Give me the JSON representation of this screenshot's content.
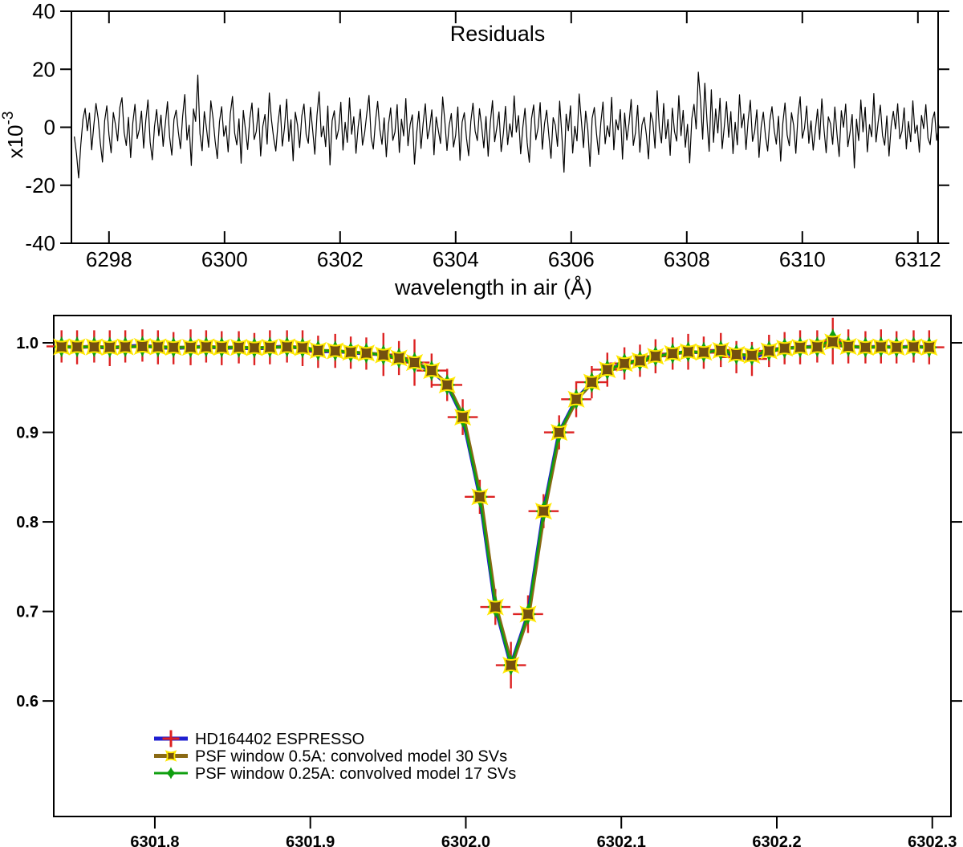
{
  "figure": {
    "background": "#ffffff",
    "frame_color": "#000000"
  },
  "legend": {
    "position": "bottom-left-inside",
    "items": [
      {
        "label": "HD164402 ESPRESSO",
        "marker": "red-plus-error-bar",
        "line_color": "#1f1fd0",
        "marker_color": "#dd2222"
      },
      {
        "label": "PSF window 0.5A: convolved model 30 SVs",
        "marker": "yellow-box-star",
        "line_color": "#8a6914",
        "marker_color": "#74500f"
      },
      {
        "label": "PSF window 0.25A: convolved model 17 SVs",
        "marker": "green-star4",
        "line_color": "#0f9f0f",
        "marker_color": "#0f9f0f"
      }
    ]
  },
  "chart_data": [
    {
      "type": "line",
      "panel": "top",
      "title": "Residuals",
      "xlabel": "wavelength in air (Å)",
      "ylabel": "x10⁻³",
      "ylabel_base": "x10",
      "ylabel_exp": "-3",
      "line_color": "#000000",
      "xlim": [
        6297.35,
        6312.35
      ],
      "ylim": [
        -40,
        40
      ],
      "xticks": [
        6298,
        6300,
        6302,
        6304,
        6306,
        6308,
        6310,
        6312
      ],
      "yticks": [
        40,
        20,
        0,
        -20,
        -40
      ],
      "units": "residual values in 1e-3",
      "x_start": 6297.4,
      "x_step": 0.0375,
      "values": [
        -3.2,
        -9.1,
        -17.5,
        -6.0,
        2.8,
        6.5,
        -1.2,
        4.9,
        -7.8,
        0.6,
        8.2,
        3.1,
        -5.4,
        -12.0,
        2.2,
        7.4,
        -2.6,
        -8.8,
        5.1,
        0.9,
        -4.7,
        6.8,
        10.2,
        -1.8,
        -6.3,
        3.4,
        -10.5,
        1.5,
        7.9,
        -3.9,
        -0.8,
        5.6,
        -7.2,
        2.4,
        9.4,
        -5.1,
        -11.2,
        0.2,
        6.1,
        -2.9,
        4.2,
        -6.6,
        1.1,
        8.8,
        -3.5,
        -9.6,
        2.7,
        5.9,
        -1.5,
        -7.4,
        3.8,
        11.3,
        -4.4,
        0.7,
        -13.2,
        6.3,
        2.0,
        18.0,
        -2.2,
        -8.1,
        5.4,
        -0.4,
        -6.9,
        9.1,
        3.3,
        -4.8,
        -10.8,
        1.9,
        7.1,
        -3.1,
        0.5,
        -8.5,
        4.6,
        10.6,
        -2.0,
        -6.1,
        2.9,
        -12.4,
        5.8,
        -0.9,
        -7.7,
        3.0,
        8.4,
        -4.2,
        -1.4,
        6.6,
        -9.9,
        0.3,
        4.4,
        -5.8,
        11.8,
        2.5,
        -3.7,
        -8.2,
        1.3,
        7.6,
        -6.5,
        -0.2,
        9.7,
        -4.9,
        2.6,
        -11.6,
        5.2,
        0.8,
        -7.0,
        3.9,
        8.0,
        -2.5,
        -5.5,
        6.9,
        -1.0,
        -9.3,
        4.1,
        12.2,
        -3.3,
        0.4,
        -6.7,
        7.3,
        -13.0,
        2.3,
        5.7,
        -4.1,
        -0.6,
        8.6,
        -7.9,
        1.7,
        -5.2,
        10.1,
        -2.4,
        3.6,
        -9.0,
        0.1,
        6.2,
        -6.2,
        -1.9,
        4.8,
        11.0,
        -3.6,
        -7.5,
        2.1,
        8.9,
        -0.7,
        -5.9,
        3.2,
        -10.2,
        1.0,
        6.7,
        -4.5,
        -1.6,
        7.8,
        -8.7,
        2.8,
        -3.0,
        9.9,
        -6.4,
        0.9,
        4.3,
        -12.7,
        -2.1,
        5.5,
        -7.3,
        1.4,
        8.1,
        -4.0,
        -0.3,
        6.0,
        -9.5,
        3.5,
        -1.1,
        -5.6,
        10.4,
        2.2,
        -8.0,
        0.6,
        4.7,
        -6.8,
        -2.7,
        7.0,
        -11.4,
        1.8,
        5.0,
        -3.8,
        -9.8,
        2.0,
        8.3,
        -1.3,
        -4.6,
        6.4,
        0.2,
        -7.1,
        3.7,
        -10.0,
        1.6,
        9.2,
        -5.0,
        -0.1,
        5.3,
        -8.4,
        -2.3,
        7.2,
        -6.0,
        1.2,
        -3.4,
        10.8,
        -1.7,
        4.0,
        -9.2,
        0.0,
        6.5,
        -5.3,
        -12.1,
        2.9,
        7.7,
        -4.3,
        -0.5,
        8.5,
        -7.6,
        1.1,
        5.9,
        -2.8,
        -10.7,
        3.3,
        0.7,
        -6.6,
        9.0,
        -2.6,
        -15.5,
        4.5,
        -1.2,
        7.4,
        -8.9,
        0.3,
        -4.7,
        11.5,
        2.4,
        -7.0,
        5.6,
        -0.8,
        -13.5,
        3.1,
        6.8,
        -2.2,
        -9.4,
        1.5,
        8.7,
        -5.7,
        0.5,
        -3.2,
        10.3,
        -7.8,
        2.6,
        -0.9,
        6.1,
        -11.0,
        4.9,
        -4.4,
        1.3,
        9.6,
        -6.3,
        -1.8,
        7.5,
        -8.6,
        0.8,
        3.4,
        -2.5,
        -10.9,
        5.1,
        1.9,
        -7.2,
        12.6,
        -0.4,
        -5.4,
        8.2,
        -3.9,
        2.7,
        -9.7,
        6.6,
        -1.5,
        -4.8,
        10.9,
        -2.9,
        5.8,
        -6.9,
        1.0,
        -12.3,
        3.0,
        7.9,
        -0.6,
        19.0,
        9.5,
        -4.1,
        15.2,
        2.1,
        -8.3,
        12.9,
        -5.2,
        6.3,
        -2.0,
        10.0,
        -7.4,
        0.4,
        8.8,
        -3.5,
        5.4,
        -9.1,
        1.7,
        -6.1,
        11.2,
        -0.2,
        4.6,
        -7.7,
        2.5,
        9.3,
        -4.9,
        -1.4,
        6.0,
        -10.4,
        0.1,
        5.2,
        -3.1,
        -8.2,
        2.3,
        7.1,
        -0.9,
        -5.8,
        3.8,
        -11.7,
        1.4,
        8.4,
        -2.7,
        -6.4,
        5.0,
        0.6,
        -9.0,
        4.2,
        10.5,
        -3.8,
        -0.3,
        7.3,
        -5.5,
        2.2,
        -7.9,
        -1.1,
        6.2,
        -4.2,
        9.8,
        -0.7,
        -8.8,
        3.6,
        1.2,
        -5.9,
        7.0,
        -2.4,
        -10.1,
        5.7,
        0.0,
        8.0,
        -6.7,
        -1.9,
        4.4,
        -14.0,
        2.8,
        -4.6,
        9.4,
        -1.6,
        6.9,
        -8.5,
        0.9,
        -3.3,
        11.6,
        -5.1,
        1.8,
        7.6,
        -2.8,
        -6.2,
        3.9,
        -9.9,
        0.5,
        5.5,
        -0.6,
        8.1,
        -4.0,
        -1.3,
        6.7,
        -7.5,
        2.0,
        -5.0,
        9.1,
        -2.1,
        0.7,
        -8.6,
        4.1,
        -0.5,
        7.8,
        -3.7,
        -6.0,
        2.5,
        5.3,
        -4.5,
        0.8
      ]
    },
    {
      "type": "line",
      "panel": "bottom",
      "xlim": [
        6301.735,
        6302.312
      ],
      "ylim": [
        0.471,
        1.0305
      ],
      "xticks": [
        "6301.8",
        "6301.9",
        "6302.0",
        "6302.1",
        "6302.2",
        "6302.3"
      ],
      "yticks": [
        "1.0",
        "0.9",
        "0.8",
        "0.7",
        "0.6"
      ],
      "x": [
        6301.74,
        6301.75,
        6301.761,
        6301.771,
        6301.781,
        6301.792,
        6301.802,
        6301.812,
        6301.823,
        6301.833,
        6301.843,
        6301.854,
        6301.864,
        6301.874,
        6301.885,
        6301.895,
        6301.905,
        6301.916,
        6301.926,
        6301.936,
        6301.947,
        6301.957,
        6301.967,
        6301.978,
        6301.988,
        6301.998,
        6302.009,
        6302.019,
        6302.029,
        6302.04,
        6302.05,
        6302.06,
        6302.071,
        6302.081,
        6302.091,
        6302.102,
        6302.112,
        6302.122,
        6302.133,
        6302.143,
        6302.153,
        6302.164,
        6302.174,
        6302.184,
        6302.195,
        6302.205,
        6302.215,
        6302.226,
        6302.236,
        6302.246,
        6302.257,
        6302.267,
        6302.277,
        6302.288,
        6302.298
      ],
      "series": [
        {
          "name": "HD164402 ESPRESSO",
          "color": "#1f1fd0",
          "marker": "red-plus-error-bar",
          "marker_color": "#dd2222",
          "xerr": 0.0097,
          "values": [
            0.996,
            0.995,
            0.996,
            0.994,
            0.996,
            0.997,
            0.995,
            0.994,
            0.995,
            0.996,
            0.994,
            0.995,
            0.993,
            0.995,
            0.996,
            0.994,
            0.99,
            0.991,
            0.989,
            0.988,
            0.987,
            0.983,
            0.978,
            0.969,
            0.953,
            0.917,
            0.828,
            0.705,
            0.64,
            0.697,
            0.812,
            0.9,
            0.937,
            0.956,
            0.97,
            0.977,
            0.98,
            0.985,
            0.988,
            0.99,
            0.989,
            0.992,
            0.984,
            0.982,
            0.991,
            0.994,
            0.995,
            0.996,
            1.002,
            0.996,
            0.995,
            0.996,
            0.995,
            0.996,
            0.995
          ],
          "err": [
            0.018,
            0.019,
            0.018,
            0.02,
            0.018,
            0.018,
            0.019,
            0.018,
            0.02,
            0.018,
            0.019,
            0.018,
            0.018,
            0.019,
            0.018,
            0.02,
            0.018,
            0.019,
            0.018,
            0.018,
            0.024,
            0.019,
            0.026,
            0.019,
            0.018,
            0.02,
            0.019,
            0.02,
            0.026,
            0.021,
            0.019,
            0.019,
            0.02,
            0.018,
            0.019,
            0.018,
            0.018,
            0.019,
            0.018,
            0.02,
            0.018,
            0.019,
            0.018,
            0.019,
            0.018,
            0.018,
            0.019,
            0.018,
            0.026,
            0.019,
            0.018,
            0.019,
            0.018,
            0.018,
            0.019
          ]
        },
        {
          "name": "PSF window 0.5A: convolved model 30 SVs",
          "color": "#8a6914",
          "marker": "yellow-box-star",
          "marker_color": "#74500f",
          "marker_stroke": "#ffe800",
          "values": [
            0.9955,
            0.9955,
            0.9955,
            0.995,
            0.9955,
            0.996,
            0.9955,
            0.995,
            0.995,
            0.9955,
            0.995,
            0.995,
            0.9945,
            0.995,
            0.9955,
            0.9945,
            0.9915,
            0.991,
            0.9895,
            0.9885,
            0.9865,
            0.983,
            0.978,
            0.969,
            0.953,
            0.917,
            0.828,
            0.705,
            0.64,
            0.697,
            0.812,
            0.9,
            0.937,
            0.956,
            0.97,
            0.977,
            0.98,
            0.985,
            0.988,
            0.99,
            0.9895,
            0.9915,
            0.987,
            0.986,
            0.991,
            0.994,
            0.995,
            0.9955,
            1.001,
            0.996,
            0.995,
            0.9955,
            0.995,
            0.9955,
            0.995
          ]
        },
        {
          "name": "PSF window 0.25A: convolved model 17 SVs",
          "color": "#0f9f0f",
          "marker": "green-star4",
          "marker_color": "#0f9f0f",
          "values": [
            0.9955,
            0.9955,
            0.9955,
            0.995,
            0.9955,
            0.996,
            0.9955,
            0.995,
            0.995,
            0.9955,
            0.995,
            0.995,
            0.9945,
            0.995,
            0.9955,
            0.9945,
            0.9915,
            0.991,
            0.9895,
            0.9885,
            0.9865,
            0.983,
            0.978,
            0.969,
            0.953,
            0.917,
            0.828,
            0.705,
            0.64,
            0.697,
            0.812,
            0.9,
            0.937,
            0.956,
            0.97,
            0.977,
            0.98,
            0.985,
            0.988,
            0.99,
            0.9895,
            0.9915,
            0.987,
            0.986,
            0.991,
            0.994,
            0.995,
            0.9955,
            1.004,
            0.996,
            0.995,
            0.9955,
            0.995,
            0.9955,
            0.995
          ]
        }
      ]
    }
  ]
}
